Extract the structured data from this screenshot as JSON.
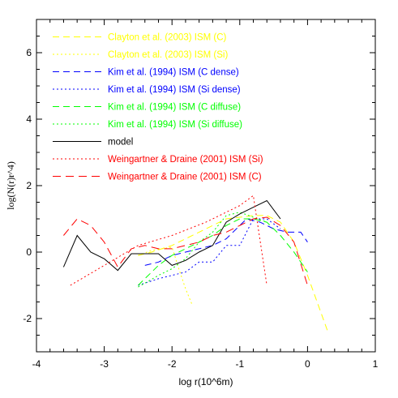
{
  "chart_data": {
    "type": "line",
    "title": "",
    "xlabel": "log r(10^6m)",
    "ylabel": "log(N(r)r^4)",
    "xlim": [
      -4,
      1
    ],
    "ylim": [
      -3,
      7
    ],
    "x_ticks": [
      "-4",
      "-3",
      "-2",
      "-1",
      "0",
      "1"
    ],
    "y_ticks": [
      "-2",
      "0",
      "2",
      "4",
      "6"
    ],
    "grid": false,
    "legend_position": "top-left",
    "series": [
      {
        "name": "Clayton et al. (2003) ISM (C)",
        "color": "#ffff00",
        "dash": "8,5",
        "x": [
          -2.5,
          -2.3,
          -2.0,
          -1.8,
          -1.6,
          -1.4,
          -1.2,
          -1.0,
          -0.8,
          -0.6,
          -0.4,
          -0.2,
          0.0,
          0.3
        ],
        "y": [
          -0.1,
          0.0,
          0.2,
          0.4,
          0.6,
          0.8,
          1.0,
          1.05,
          1.1,
          1.1,
          0.9,
          0.3,
          -0.7,
          -2.4
        ]
      },
      {
        "name": "Clayton et al. (2003) ISM (Si)",
        "color": "#ffff00",
        "dash": "2,3",
        "x": [
          -2.5,
          -2.3,
          -2.0,
          -1.9,
          -1.8,
          -1.7
        ],
        "y": [
          -0.1,
          0.05,
          0.15,
          -0.5,
          -1.1,
          -1.6
        ]
      },
      {
        "name": "Kim et al. (1994) ISM (C dense)",
        "color": "#0000ff",
        "dash": "8,5",
        "x": [
          -2.4,
          -2.2,
          -2.0,
          -1.8,
          -1.6,
          -1.4,
          -1.2,
          -1.0,
          -0.9,
          -0.7,
          -0.5,
          -0.3,
          -0.1,
          0.0
        ],
        "y": [
          -0.4,
          -0.3,
          -0.1,
          0.0,
          0.1,
          0.2,
          0.4,
          0.8,
          1.0,
          0.9,
          0.7,
          0.6,
          0.6,
          0.3
        ]
      },
      {
        "name": "Kim et al. (1994) ISM (Si dense)",
        "color": "#0000ff",
        "dash": "2,3",
        "x": [
          -2.5,
          -2.2,
          -2.0,
          -1.8,
          -1.6,
          -1.4,
          -1.2,
          -1.0,
          -0.8,
          -0.6,
          -0.4
        ],
        "y": [
          -1.0,
          -0.8,
          -0.7,
          -0.6,
          -0.3,
          -0.3,
          0.2,
          0.2,
          1.0,
          1.0,
          0.7
        ]
      },
      {
        "name": "Kim et al. (1994) ISM (C diffuse)",
        "color": "#00ff00",
        "dash": "8,5",
        "x": [
          -2.5,
          -2.2,
          -2.0,
          -1.8,
          -1.6,
          -1.4,
          -1.2,
          -1.0,
          -0.8,
          -0.6,
          -0.4,
          -0.2,
          0.0
        ],
        "y": [
          -1.0,
          -0.4,
          -0.1,
          0.1,
          0.3,
          0.5,
          0.8,
          1.0,
          1.0,
          0.9,
          0.5,
          0.0,
          -0.6
        ]
      },
      {
        "name": "Kim et al. (1994) ISM (Si diffuse)",
        "color": "#00ff00",
        "dash": "2,3",
        "x": [
          -2.5,
          -2.2,
          -2.0,
          -1.8,
          -1.6,
          -1.4,
          -1.2,
          -1.0,
          -0.8,
          -0.6
        ],
        "y": [
          -1.05,
          -0.7,
          -0.5,
          -0.2,
          0.3,
          0.6,
          1.1,
          1.2,
          1.05,
          0.9
        ]
      },
      {
        "name": "model",
        "color": "#000000",
        "dash": "",
        "x": [
          -3.6,
          -3.4,
          -3.2,
          -3.0,
          -2.8,
          -2.6,
          -2.4,
          -2.2,
          -2.0,
          -1.8,
          -1.6,
          -1.4,
          -1.2,
          -1.0,
          -0.8,
          -0.6,
          -0.4
        ],
        "y": [
          -0.45,
          0.5,
          0.0,
          -0.2,
          -0.55,
          -0.05,
          -0.05,
          -0.05,
          -0.4,
          -0.25,
          0.0,
          0.2,
          0.9,
          1.15,
          1.35,
          1.55,
          1.0
        ]
      },
      {
        "name": "Weingartner & Draine (2001) ISM (Si)",
        "color": "#ff0000",
        "dash": "2,3",
        "x": [
          -3.5,
          -3.0,
          -2.5,
          -2.0,
          -1.5,
          -1.0,
          -0.8,
          -0.6
        ],
        "y": [
          -1.0,
          -0.4,
          0.2,
          0.5,
          0.9,
          1.4,
          1.7,
          -1.0
        ]
      },
      {
        "name": "Weingartner & Draine (2001) ISM (C)",
        "color": "#ff0000",
        "dash": "10,6",
        "x": [
          -3.6,
          -3.4,
          -3.2,
          -3.0,
          -2.8,
          -2.6,
          -2.4,
          -2.2,
          -2.0,
          -1.8,
          -1.6,
          -1.4,
          -1.2,
          -1.0,
          -0.8,
          -0.6,
          -0.4,
          -0.2,
          0.0
        ],
        "y": [
          0.5,
          1.0,
          0.8,
          0.3,
          -0.45,
          0.1,
          0.2,
          0.1,
          0.1,
          0.2,
          0.3,
          0.5,
          0.6,
          0.8,
          1.0,
          1.05,
          0.8,
          0.3,
          -1.0
        ]
      }
    ]
  }
}
